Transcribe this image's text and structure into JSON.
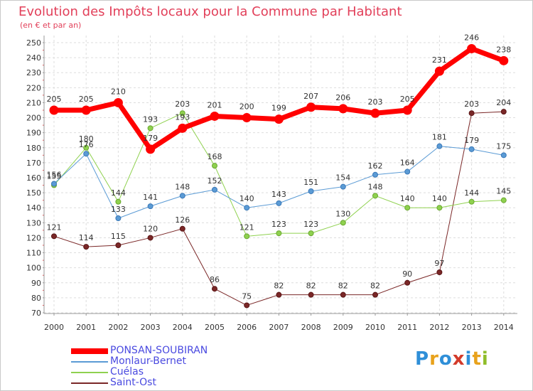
{
  "title": "Evolution des Impôts locaux pour la Commune par Habitant",
  "subtitle": "(en € et par an)",
  "logo": {
    "letters": [
      "P",
      "r",
      "o",
      "x",
      "i",
      "t",
      "i"
    ],
    "colors": [
      "#2f8fd8",
      "#e8a21c",
      "#2f8fd8",
      "#d33a2a",
      "#2f8fd8",
      "#e8a21c",
      "#8fbd2a"
    ]
  },
  "chart_data": {
    "type": "line",
    "title": "Evolution des Impôts locaux pour la Commune par Habitant",
    "subtitle": "(en € et par an)",
    "x": [
      "2000",
      "2001",
      "2002",
      "2003",
      "2004",
      "2005",
      "2006",
      "2007",
      "2008",
      "2009",
      "2010",
      "2011",
      "2012",
      "2013",
      "2014"
    ],
    "ylim": [
      70,
      250
    ],
    "yticks": [
      70,
      80,
      90,
      100,
      110,
      120,
      130,
      140,
      150,
      160,
      170,
      180,
      190,
      200,
      210,
      220,
      230,
      240,
      250
    ],
    "grid": true,
    "legend_position": "bottom-left",
    "series": [
      {
        "name": "PONSAN-SOUBIRAN",
        "color": "#ff0000",
        "values": [
          205,
          205,
          210,
          179,
          193,
          201,
          200,
          199,
          207,
          206,
          203,
          205,
          231,
          246,
          238
        ]
      },
      {
        "name": "Monlaur-Bernet",
        "color": "#5b9bd5",
        "values": [
          156,
          176,
          133,
          141,
          148,
          152,
          140,
          143,
          151,
          154,
          162,
          164,
          181,
          179,
          175
        ]
      },
      {
        "name": "Cuélas",
        "color": "#8fd14f",
        "values": [
          155,
          180,
          144,
          193,
          203,
          168,
          121,
          123,
          123,
          130,
          148,
          140,
          140,
          144,
          145
        ]
      },
      {
        "name": "Saint-Ost",
        "color": "#7a2727",
        "values": [
          121,
          114,
          115,
          120,
          126,
          86,
          75,
          82,
          82,
          82,
          82,
          90,
          97,
          203,
          204
        ]
      }
    ]
  }
}
